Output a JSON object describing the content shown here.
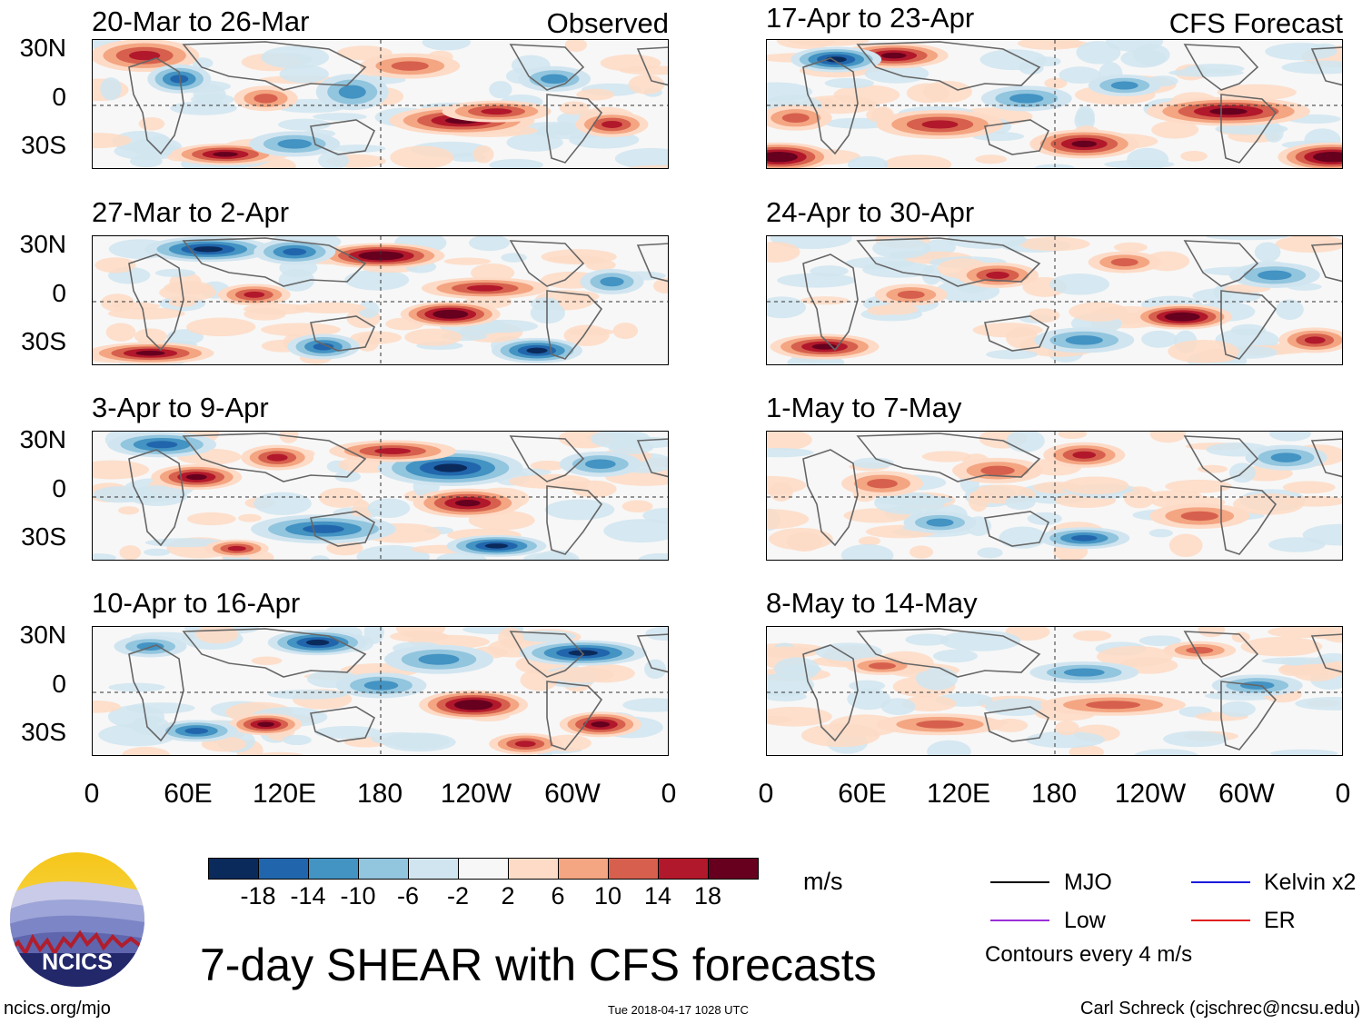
{
  "observed_header": "Observed",
  "forecast_header": "CFS Forecast",
  "observed_panels": [
    {
      "title": "20-Mar to 26-Mar"
    },
    {
      "title": "27-Mar to 2-Apr"
    },
    {
      "title": "3-Apr to 9-Apr"
    },
    {
      "title": "10-Apr to 16-Apr"
    }
  ],
  "forecast_panels": [
    {
      "title": "17-Apr to 23-Apr"
    },
    {
      "title": "24-Apr to 30-Apr"
    },
    {
      "title": "1-May to 7-May"
    },
    {
      "title": "8-May to 14-May"
    }
  ],
  "lat_labels": [
    "30N",
    "0",
    "30S"
  ],
  "lon_labels": [
    "0",
    "60E",
    "120E",
    "180",
    "120W",
    "60W",
    "0"
  ],
  "colorbar": {
    "labels": [
      "-18",
      "-14",
      "-10",
      "-6",
      "-2",
      "2",
      "6",
      "10",
      "14",
      "18"
    ],
    "colors": [
      "#0b2a5c",
      "#2166ac",
      "#4393c3",
      "#92c5de",
      "#d1e5f0",
      "#f7f7f7",
      "#fddbc7",
      "#f4a582",
      "#d6604d",
      "#b2182b",
      "#67001f"
    ],
    "units": "m/s"
  },
  "legend": {
    "mjo": "MJO",
    "low": "Low",
    "kelvin": "Kelvin x2",
    "er": "ER",
    "contours": "Contours every 4 m/s",
    "colors": {
      "mjo": "#000000",
      "low": "#9b30d9",
      "kelvin": "#1a1adb",
      "er": "#e02020"
    }
  },
  "main_title": "7-day SHEAR with CFS forecasts",
  "logo_text": "NCICS",
  "footer": {
    "website": "ncics.org/mjo",
    "timestamp": "Tue 2018-04-17 1028 UTC",
    "author": "Carl Schreck (cjschrec@ncsu.edu)"
  }
}
